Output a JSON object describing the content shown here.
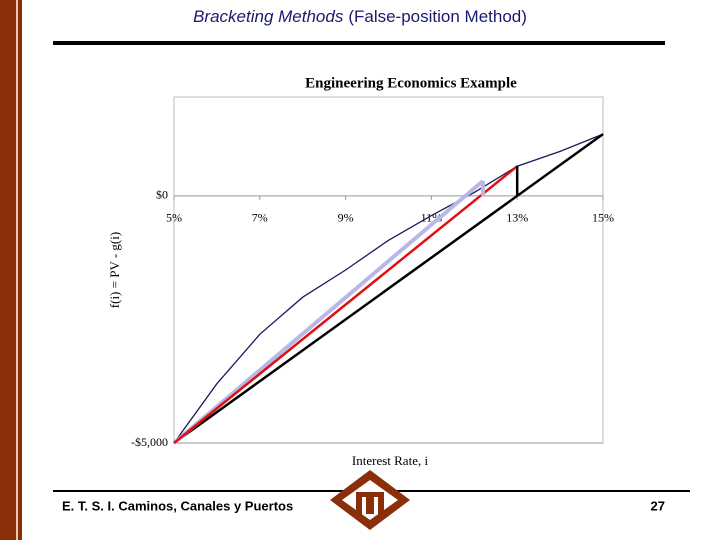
{
  "slide": {
    "title_a": "Bracketing Methods",
    "title_b": "(False-position Method)",
    "footer": "E. T. S. I. Caminos, Canales y Puertos",
    "page": "27"
  },
  "chart_data": {
    "type": "line",
    "title": "Engineering Economics Example",
    "x_label": "Interest Rate, i",
    "y_label": "f(i) = PV - g(i)",
    "xlim": [
      5,
      15
    ],
    "ylim": [
      -5000,
      2000
    ],
    "xticks": [
      {
        "value": 5,
        "label": "5%"
      },
      {
        "value": 7,
        "label": "7%"
      },
      {
        "value": 9,
        "label": "9%"
      },
      {
        "value": 11,
        "label": "11%"
      },
      {
        "value": 13,
        "label": "13%"
      },
      {
        "value": 15,
        "label": "15%"
      }
    ],
    "yticks": [
      {
        "value": 0,
        "label": "$0"
      },
      {
        "value": -5000,
        "label": "-$5,000"
      }
    ],
    "grid": true,
    "series": [
      {
        "color": "#1a1a5e",
        "x": [
          5,
          6,
          7,
          8,
          9,
          10,
          11,
          12,
          13,
          14,
          15
        ],
        "values": [
          -5000,
          -3800,
          -2800,
          -2050,
          -1500,
          -900,
          -400,
          70,
          600,
          900,
          1250
        ]
      },
      {
        "color": "#000000",
        "x": [
          5,
          15
        ],
        "values": [
          -5000,
          1250
        ]
      },
      {
        "color": "#b8b8e8",
        "x": [
          5,
          12.2
        ],
        "values": [
          -5000,
          300
        ]
      },
      {
        "color": "#dd1111",
        "x": [
          5,
          13
        ],
        "values": [
          -5000,
          600
        ]
      },
      {
        "color": "#b8b8e8",
        "x": [
          12.2,
          12.2
        ],
        "values": [
          0,
          300
        ]
      },
      {
        "color": "#000000",
        "x": [
          13,
          13
        ],
        "values": [
          0,
          600
        ]
      }
    ]
  }
}
